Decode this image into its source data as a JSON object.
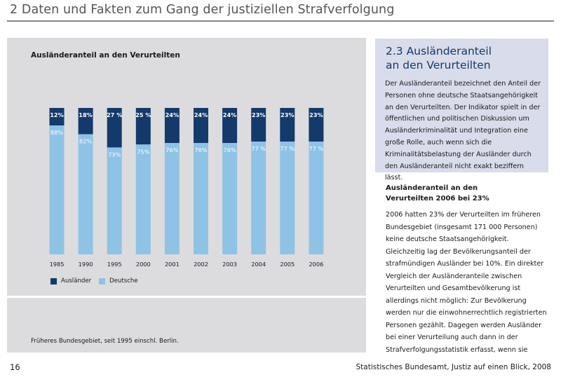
{
  "header": {
    "title": "2 Daten und Fakten zum Gang der justiziellen Strafverfolgung"
  },
  "chart_data": {
    "type": "bar",
    "stacked": true,
    "title": "Ausländeranteil an den Verurteilten",
    "categories": [
      "1985",
      "1990",
      "1995",
      "2000",
      "2001",
      "2002",
      "2003",
      "2004",
      "2005",
      "2006"
    ],
    "series": [
      {
        "name": "Ausländer",
        "values": [
          12,
          18,
          27,
          25,
          24,
          24,
          24,
          23,
          23,
          23
        ],
        "labels": [
          "12%",
          "18%",
          "27 %",
          "25 %",
          "24%",
          "24%",
          "24%",
          "23%",
          "23%",
          "23%"
        ],
        "color": "#143a6b"
      },
      {
        "name": "Deutsche",
        "values": [
          88,
          82,
          73,
          75,
          76,
          76,
          76,
          77,
          77,
          77
        ],
        "labels": [
          "88%",
          "82%",
          "73%",
          "75%",
          "76%",
          "76%",
          "76%",
          "77 %",
          "77 %",
          "77 %"
        ],
        "color": "#8ec3e6"
      }
    ],
    "ylim": [
      0,
      100
    ],
    "legend_position": "bottom-left",
    "footnote": "Früheres Bundesgebiet, seit 1995 einschl. Berlin."
  },
  "sidebar": {
    "heading_line1": "2.3 Ausländeranteil",
    "heading_line2": "an den Verurteilten",
    "body": "Der Ausländeranteil bezeichnet den Anteil der Personen ohne deutsche Staatsangehörigkeit an den Verurteilten. Der Indikator spielt in der öffentlichen und politischen Diskussion um Ausländerkriminalität und Integration eine große Rolle, auch wenn sich die Kriminalitätsbelastung der Ausländer durch den Ausländeranteil nicht exakt beziffern lässt."
  },
  "section": {
    "heading_line1": "Ausländeranteil an den",
    "heading_line2": "Verurteilten 2006 bei 23%",
    "body": "2006 hatten 23% der Verurteilten im früheren Bundesgebiet (insgesamt 171 000 Personen) keine deutsche Staatsangehörigkeit. Gleichzeitig lag der Bevölkerungsanteil der strafmündigen Ausländer bei 10%. Ein direkter Vergleich der Ausländeranteile zwischen Verurteilten und Gesamtbevölkerung ist allerdings nicht möglich: Zur Bevölkerung werden nur die einwohnerrechtlich registrierten Personen gezählt. Dagegen werden Ausländer bei einer Verurteilung auch dann in der Strafverfolgungsstatistik erfasst, wenn sie"
  },
  "footer": {
    "page_number": "16",
    "source": "Statistisches Bundesamt, Justiz auf einen Blick, 2008"
  }
}
